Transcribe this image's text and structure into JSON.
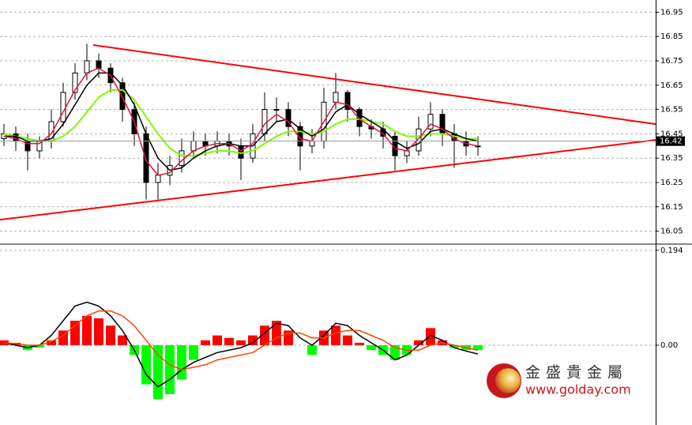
{
  "chart_data": [
    {
      "type": "candlestick",
      "x": [
        0,
        1,
        2,
        3,
        4,
        5,
        6,
        7,
        8,
        9,
        10,
        11,
        12,
        13,
        14,
        15,
        16,
        17,
        18,
        19,
        20,
        21,
        22,
        23,
        24,
        25,
        26,
        27,
        28,
        29,
        30,
        31,
        32,
        33,
        34,
        35,
        36,
        37,
        38,
        39,
        40
      ],
      "xlim": [
        -0.333,
        55
      ],
      "open": [
        16.43,
        16.45,
        16.42,
        16.38,
        16.42,
        16.5,
        16.62,
        16.7,
        16.75,
        16.72,
        16.66,
        16.55,
        16.45,
        16.25,
        16.28,
        16.32,
        16.38,
        16.42,
        16.4,
        16.42,
        16.4,
        16.35,
        16.45,
        16.55,
        16.55,
        16.48,
        16.4,
        16.42,
        16.58,
        16.62,
        16.55,
        16.48,
        16.47,
        16.44,
        16.36,
        16.38,
        16.47,
        16.53,
        16.45,
        16.42,
        16.4
      ],
      "high": [
        16.49,
        16.48,
        16.45,
        16.44,
        16.55,
        16.66,
        16.74,
        16.82,
        16.78,
        16.74,
        16.68,
        16.58,
        16.48,
        16.33,
        16.36,
        16.43,
        16.46,
        16.45,
        16.46,
        16.45,
        16.43,
        16.49,
        16.62,
        16.6,
        16.58,
        16.5,
        16.47,
        16.64,
        16.7,
        16.63,
        16.56,
        16.51,
        16.5,
        16.46,
        16.42,
        16.52,
        16.58,
        16.55,
        16.49,
        16.46,
        16.44
      ],
      "low": [
        16.4,
        16.38,
        16.3,
        16.35,
        16.39,
        16.48,
        16.59,
        16.67,
        16.68,
        16.62,
        16.5,
        16.4,
        16.18,
        16.18,
        16.24,
        16.29,
        16.35,
        16.36,
        16.37,
        16.36,
        16.26,
        16.33,
        16.42,
        16.5,
        16.44,
        16.3,
        16.37,
        16.39,
        16.55,
        16.5,
        16.44,
        16.43,
        16.39,
        16.3,
        16.33,
        16.36,
        16.44,
        16.4,
        16.31,
        16.36,
        16.36
      ],
      "close": [
        16.45,
        16.42,
        16.38,
        16.42,
        16.5,
        16.62,
        16.7,
        16.75,
        16.72,
        16.66,
        16.55,
        16.45,
        16.25,
        16.28,
        16.32,
        16.38,
        16.42,
        16.4,
        16.42,
        16.4,
        16.35,
        16.45,
        16.55,
        16.55,
        16.48,
        16.4,
        16.42,
        16.58,
        16.62,
        16.55,
        16.48,
        16.47,
        16.44,
        16.36,
        16.38,
        16.47,
        16.53,
        16.45,
        16.42,
        16.4,
        16.4
      ],
      "series": [
        {
          "color": "#7cfc00",
          "values": [
            16.45,
            16.44,
            16.43,
            16.42,
            16.42,
            16.44,
            16.48,
            16.54,
            16.6,
            16.63,
            16.63,
            16.59,
            16.52,
            16.45,
            16.39,
            16.36,
            16.36,
            16.37,
            16.38,
            16.38,
            16.37,
            16.38,
            16.41,
            16.44,
            16.46,
            16.46,
            16.45,
            16.46,
            16.49,
            16.51,
            16.51,
            16.5,
            16.49,
            16.46,
            16.44,
            16.44,
            16.45,
            16.45,
            16.44,
            16.43,
            16.43
          ]
        },
        {
          "color": "#000000",
          "values": [
            16.44,
            16.44,
            16.42,
            16.42,
            16.43,
            16.49,
            16.57,
            16.65,
            16.7,
            16.7,
            16.65,
            16.57,
            16.45,
            16.35,
            16.3,
            16.31,
            16.35,
            16.38,
            16.4,
            16.41,
            16.4,
            16.4,
            16.45,
            16.5,
            16.51,
            16.47,
            16.44,
            16.47,
            16.54,
            16.57,
            16.53,
            16.5,
            16.47,
            16.42,
            16.39,
            16.41,
            16.46,
            16.47,
            16.45,
            16.43,
            16.42
          ]
        },
        {
          "color": "#dc143c",
          "values": [
            16.44,
            16.43,
            16.41,
            16.41,
            16.45,
            16.54,
            16.63,
            16.7,
            16.72,
            16.69,
            16.6,
            16.5,
            16.34,
            16.28,
            16.29,
            16.34,
            16.38,
            16.4,
            16.41,
            16.41,
            16.38,
            16.41,
            16.49,
            16.53,
            16.5,
            16.43,
            16.42,
            16.5,
            16.58,
            16.57,
            16.51,
            16.48,
            16.45,
            16.39,
            16.38,
            16.43,
            16.49,
            16.47,
            16.43,
            16.41,
            16.4
          ]
        }
      ],
      "trendlines": [
        {
          "color": "#ff0000",
          "x": [
            7.533,
            55
          ],
          "values": [
            16.815,
            16.49
          ]
        },
        {
          "color": "#ff0000",
          "x": [
            -0.333,
            55
          ],
          "values": [
            16.097,
            16.425
          ]
        }
      ],
      "last_price": 16.42,
      "ylim": [
        16.0,
        17.0
      ],
      "yticks": [
        16.95,
        16.85,
        16.75,
        16.65,
        16.55,
        16.45,
        16.35,
        16.25,
        16.15,
        16.05
      ],
      "grid": true
    },
    {
      "type": "macd",
      "x": [
        0,
        1,
        2,
        3,
        4,
        5,
        6,
        7,
        8,
        9,
        10,
        11,
        12,
        13,
        14,
        15,
        16,
        17,
        18,
        19,
        20,
        21,
        22,
        23,
        24,
        25,
        26,
        27,
        28,
        29,
        30,
        31,
        32,
        33,
        34,
        35,
        36,
        37,
        38,
        39,
        40
      ],
      "xlim": [
        -0.333,
        55
      ],
      "values": [
        0.01,
        0.005,
        -0.01,
        -0.005,
        0.01,
        0.03,
        0.05,
        0.06,
        0.055,
        0.04,
        0.02,
        -0.02,
        -0.08,
        -0.11,
        -0.1,
        -0.07,
        -0.03,
        0.01,
        0.02,
        0.015,
        0.01,
        0.02,
        0.04,
        0.05,
        0.03,
        0.0,
        -0.02,
        0.03,
        0.04,
        0.02,
        0.005,
        -0.01,
        -0.02,
        -0.03,
        -0.02,
        0.01,
        0.035,
        0.01,
        -0.005,
        -0.01,
        -0.01
      ],
      "positive_color": "#ff0000",
      "negative_color": "#00ff00",
      "series": [
        {
          "color": "#000000",
          "values": [
            0.005,
            0.0,
            -0.005,
            0.0,
            0.02,
            0.05,
            0.08,
            0.088,
            0.08,
            0.06,
            0.03,
            -0.01,
            -0.06,
            -0.085,
            -0.07,
            -0.05,
            -0.035,
            -0.025,
            -0.015,
            -0.01,
            -0.005,
            0.005,
            0.025,
            0.045,
            0.04,
            0.015,
            0.0,
            0.02,
            0.045,
            0.04,
            0.02,
            0.005,
            -0.01,
            -0.03,
            -0.02,
            0.0,
            0.02,
            0.01,
            -0.005,
            -0.012,
            -0.018
          ]
        },
        {
          "color": "#ff4500",
          "values": [
            0.005,
            0.003,
            0.0,
            0.0,
            0.008,
            0.02,
            0.04,
            0.06,
            0.07,
            0.07,
            0.06,
            0.04,
            0.01,
            -0.02,
            -0.04,
            -0.05,
            -0.045,
            -0.04,
            -0.03,
            -0.025,
            -0.02,
            -0.015,
            0.0,
            0.015,
            0.025,
            0.025,
            0.015,
            0.015,
            0.025,
            0.03,
            0.03,
            0.02,
            0.01,
            -0.005,
            -0.01,
            -0.01,
            0.0,
            0.005,
            0.0,
            -0.005,
            -0.01
          ]
        }
      ],
      "ylim": [
        -0.163,
        0.205
      ],
      "yticks": [
        0.194,
        {
          "value": 0,
          "label": "0.00"
        }
      ],
      "grid": true
    }
  ],
  "watermark": {
    "name": "金盛貴金屬",
    "url": "www.golday.com"
  }
}
